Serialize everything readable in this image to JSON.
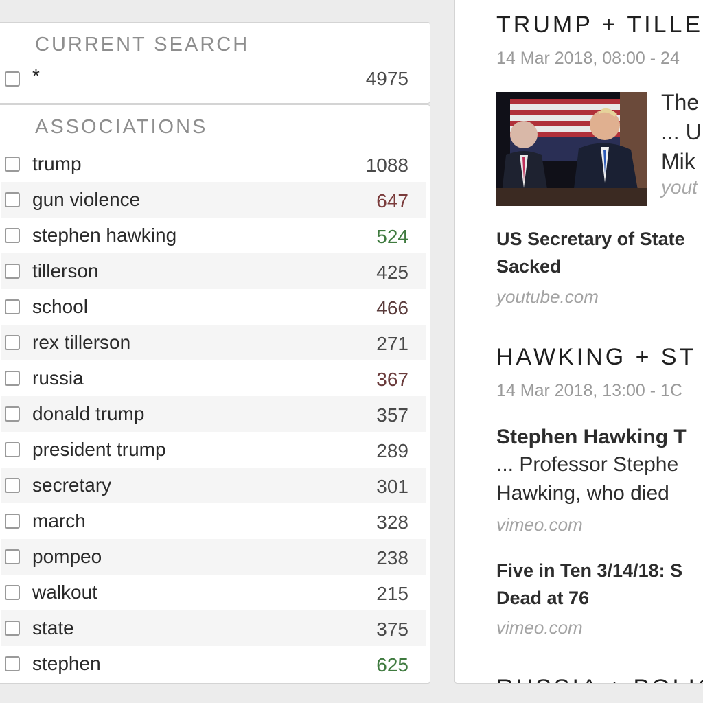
{
  "current_search": {
    "title": "CURRENT SEARCH",
    "term": "*",
    "count": "4975"
  },
  "associations": {
    "title": "ASSOCIATIONS",
    "items": [
      {
        "term": "trump",
        "count": "1088",
        "count_color": "#4a4a4a"
      },
      {
        "term": "gun violence",
        "count": "647",
        "count_color": "#7a3b3b"
      },
      {
        "term": "stephen hawking",
        "count": "524",
        "count_color": "#3f7a3f"
      },
      {
        "term": "tillerson",
        "count": "425",
        "count_color": "#4a4a4a"
      },
      {
        "term": "school",
        "count": "466",
        "count_color": "#5a3b3b"
      },
      {
        "term": "rex tillerson",
        "count": "271",
        "count_color": "#4a4a4a"
      },
      {
        "term": "russia",
        "count": "367",
        "count_color": "#6a3b3b"
      },
      {
        "term": "donald trump",
        "count": "357",
        "count_color": "#4a4a4a"
      },
      {
        "term": "president trump",
        "count": "289",
        "count_color": "#4a4a4a"
      },
      {
        "term": "secretary",
        "count": "301",
        "count_color": "#4a4a4a"
      },
      {
        "term": "march",
        "count": "328",
        "count_color": "#4a4a4a"
      },
      {
        "term": "pompeo",
        "count": "238",
        "count_color": "#4a4a4a"
      },
      {
        "term": "walkout",
        "count": "215",
        "count_color": "#4a4a4a"
      },
      {
        "term": "state",
        "count": "375",
        "count_color": "#4a4a4a"
      },
      {
        "term": "stephen",
        "count": "625",
        "count_color": "#3f7a3f"
      }
    ]
  },
  "stories": [
    {
      "title": "TRUMP + TILLE",
      "date": "14 Mar 2018, 08:00 - 24",
      "thumb_lines": [
        "The",
        "... U",
        "Mik"
      ],
      "thumb_source": "yout",
      "headline_lines": [
        "US Secretary of State",
        "Sacked"
      ],
      "source": "youtube.com"
    },
    {
      "title": "HAWKING + ST",
      "date": "14 Mar 2018, 13:00 - 1C",
      "text_lines": [
        "Stephen Hawking T",
        "... Professor Stephe",
        "Hawking, who died"
      ],
      "source1": "vimeo.com",
      "headline_lines": [
        "Five in Ten 3/14/18: S",
        "Dead at 76"
      ],
      "source2": "vimeo.com"
    }
  ],
  "bottom_partial_title": "RUSSIA + POLIC"
}
